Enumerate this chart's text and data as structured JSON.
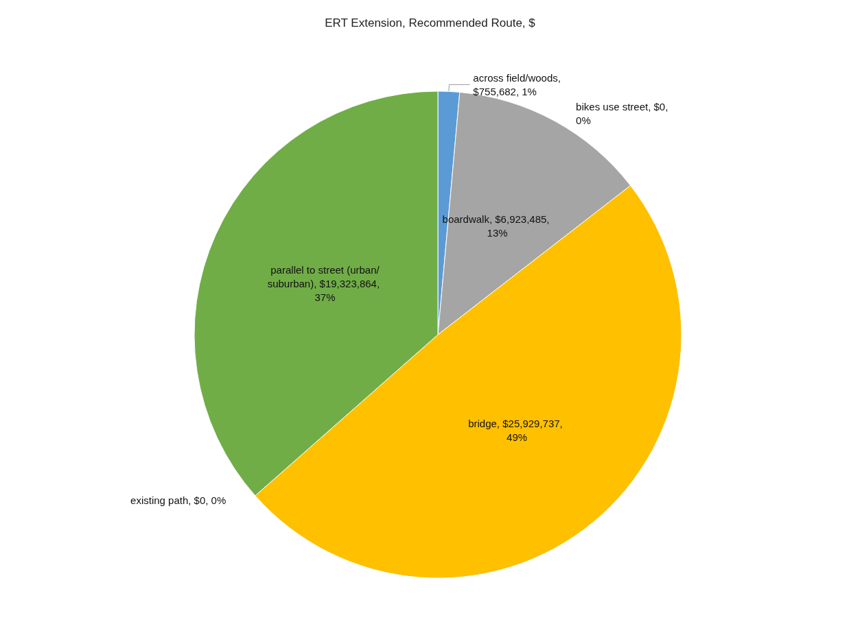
{
  "chart_data": {
    "type": "pie",
    "title": "ERT Extension, Recommended Route, $",
    "categories": [
      "across field/woods",
      "bikes use street",
      "boardwalk",
      "bridge",
      "existing path",
      "parallel to street (urban/suburban)"
    ],
    "values": [
      755682,
      0,
      6923485,
      25929737,
      0,
      19323864
    ],
    "colors": [
      "#5b9bd5",
      "#ed7d31",
      "#a5a5a5",
      "#ffc000",
      "#4472c4",
      "#70ad47"
    ],
    "value_labels": [
      ", $755,682, 1%",
      ", $0, 0%",
      ", $6,923,485, 13%",
      ", $25,929,737, 49%",
      ", $0, 0%",
      ", $19,323,864, 37%"
    ],
    "legend": false
  }
}
